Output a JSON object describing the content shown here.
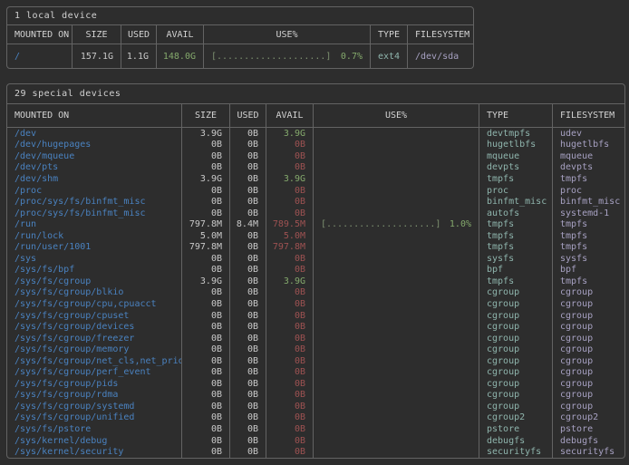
{
  "theme": {
    "bg": "#2d2d2d",
    "border": "#636363",
    "text": "#c9c9c9",
    "title": "#d2d2d2",
    "blue": "#4a82c0",
    "green": "#84a96c",
    "red": "#9e5252",
    "teal": "#8fb5ad",
    "lavender": "#a7a1c2",
    "bardots": "#7d9070"
  },
  "tables": [
    {
      "title": "1 local device",
      "columns": [
        {
          "key": "mounted",
          "label": "MOUNTED ON"
        },
        {
          "key": "size",
          "label": "SIZE"
        },
        {
          "key": "used",
          "label": "USED"
        },
        {
          "key": "avail",
          "label": "AVAIL"
        },
        {
          "key": "use",
          "label": "USE%"
        },
        {
          "key": "type",
          "label": "TYPE"
        },
        {
          "key": "filesystem",
          "label": "FILESYSTEM"
        }
      ],
      "rows": [
        {
          "mounted": "/",
          "size": "157.1G",
          "used": "1.1G",
          "avail": "148.0G",
          "avail_color": "green",
          "bar": "[....................]",
          "pct": "0.7%",
          "type": "ext4",
          "filesystem": "/dev/sda"
        }
      ]
    },
    {
      "title": "29 special devices",
      "columns": [
        {
          "key": "mounted",
          "label": "MOUNTED ON"
        },
        {
          "key": "size",
          "label": "SIZE"
        },
        {
          "key": "used",
          "label": "USED"
        },
        {
          "key": "avail",
          "label": "AVAIL"
        },
        {
          "key": "use",
          "label": "USE%"
        },
        {
          "key": "type",
          "label": "TYPE"
        },
        {
          "key": "filesystem",
          "label": "FILESYSTEM"
        }
      ],
      "rows": [
        {
          "mounted": "/dev",
          "size": "3.9G",
          "used": "0B",
          "avail": "3.9G",
          "avail_color": "green",
          "type": "devtmpfs",
          "filesystem": "udev"
        },
        {
          "mounted": "/dev/hugepages",
          "size": "0B",
          "used": "0B",
          "avail": "0B",
          "avail_color": "red",
          "type": "hugetlbfs",
          "filesystem": "hugetlbfs"
        },
        {
          "mounted": "/dev/mqueue",
          "size": "0B",
          "used": "0B",
          "avail": "0B",
          "avail_color": "red",
          "type": "mqueue",
          "filesystem": "mqueue"
        },
        {
          "mounted": "/dev/pts",
          "size": "0B",
          "used": "0B",
          "avail": "0B",
          "avail_color": "red",
          "type": "devpts",
          "filesystem": "devpts"
        },
        {
          "mounted": "/dev/shm",
          "size": "3.9G",
          "used": "0B",
          "avail": "3.9G",
          "avail_color": "green",
          "type": "tmpfs",
          "filesystem": "tmpfs"
        },
        {
          "mounted": "/proc",
          "size": "0B",
          "used": "0B",
          "avail": "0B",
          "avail_color": "red",
          "type": "proc",
          "filesystem": "proc"
        },
        {
          "mounted": "/proc/sys/fs/binfmt_misc",
          "size": "0B",
          "used": "0B",
          "avail": "0B",
          "avail_color": "red",
          "type": "binfmt_misc",
          "filesystem": "binfmt_misc"
        },
        {
          "mounted": "/proc/sys/fs/binfmt_misc",
          "size": "0B",
          "used": "0B",
          "avail": "0B",
          "avail_color": "red",
          "type": "autofs",
          "filesystem": "systemd-1"
        },
        {
          "mounted": "/run",
          "size": "797.8M",
          "used": "8.4M",
          "avail": "789.5M",
          "avail_color": "red",
          "bar": "[....................]",
          "pct": "1.0%",
          "type": "tmpfs",
          "filesystem": "tmpfs"
        },
        {
          "mounted": "/run/lock",
          "size": "5.0M",
          "used": "0B",
          "avail": "5.0M",
          "avail_color": "red",
          "type": "tmpfs",
          "filesystem": "tmpfs"
        },
        {
          "mounted": "/run/user/1001",
          "size": "797.8M",
          "used": "0B",
          "avail": "797.8M",
          "avail_color": "red",
          "type": "tmpfs",
          "filesystem": "tmpfs"
        },
        {
          "mounted": "/sys",
          "size": "0B",
          "used": "0B",
          "avail": "0B",
          "avail_color": "red",
          "type": "sysfs",
          "filesystem": "sysfs"
        },
        {
          "mounted": "/sys/fs/bpf",
          "size": "0B",
          "used": "0B",
          "avail": "0B",
          "avail_color": "red",
          "type": "bpf",
          "filesystem": "bpf"
        },
        {
          "mounted": "/sys/fs/cgroup",
          "size": "3.9G",
          "used": "0B",
          "avail": "3.9G",
          "avail_color": "green",
          "type": "tmpfs",
          "filesystem": "tmpfs"
        },
        {
          "mounted": "/sys/fs/cgroup/blkio",
          "size": "0B",
          "used": "0B",
          "avail": "0B",
          "avail_color": "red",
          "type": "cgroup",
          "filesystem": "cgroup"
        },
        {
          "mounted": "/sys/fs/cgroup/cpu,cpuacct",
          "size": "0B",
          "used": "0B",
          "avail": "0B",
          "avail_color": "red",
          "type": "cgroup",
          "filesystem": "cgroup"
        },
        {
          "mounted": "/sys/fs/cgroup/cpuset",
          "size": "0B",
          "used": "0B",
          "avail": "0B",
          "avail_color": "red",
          "type": "cgroup",
          "filesystem": "cgroup"
        },
        {
          "mounted": "/sys/fs/cgroup/devices",
          "size": "0B",
          "used": "0B",
          "avail": "0B",
          "avail_color": "red",
          "type": "cgroup",
          "filesystem": "cgroup"
        },
        {
          "mounted": "/sys/fs/cgroup/freezer",
          "size": "0B",
          "used": "0B",
          "avail": "0B",
          "avail_color": "red",
          "type": "cgroup",
          "filesystem": "cgroup"
        },
        {
          "mounted": "/sys/fs/cgroup/memory",
          "size": "0B",
          "used": "0B",
          "avail": "0B",
          "avail_color": "red",
          "type": "cgroup",
          "filesystem": "cgroup"
        },
        {
          "mounted": "/sys/fs/cgroup/net_cls,net_prio",
          "size": "0B",
          "used": "0B",
          "avail": "0B",
          "avail_color": "red",
          "type": "cgroup",
          "filesystem": "cgroup"
        },
        {
          "mounted": "/sys/fs/cgroup/perf_event",
          "size": "0B",
          "used": "0B",
          "avail": "0B",
          "avail_color": "red",
          "type": "cgroup",
          "filesystem": "cgroup"
        },
        {
          "mounted": "/sys/fs/cgroup/pids",
          "size": "0B",
          "used": "0B",
          "avail": "0B",
          "avail_color": "red",
          "type": "cgroup",
          "filesystem": "cgroup"
        },
        {
          "mounted": "/sys/fs/cgroup/rdma",
          "size": "0B",
          "used": "0B",
          "avail": "0B",
          "avail_color": "red",
          "type": "cgroup",
          "filesystem": "cgroup"
        },
        {
          "mounted": "/sys/fs/cgroup/systemd",
          "size": "0B",
          "used": "0B",
          "avail": "0B",
          "avail_color": "red",
          "type": "cgroup",
          "filesystem": "cgroup"
        },
        {
          "mounted": "/sys/fs/cgroup/unified",
          "size": "0B",
          "used": "0B",
          "avail": "0B",
          "avail_color": "red",
          "type": "cgroup2",
          "filesystem": "cgroup2"
        },
        {
          "mounted": "/sys/fs/pstore",
          "size": "0B",
          "used": "0B",
          "avail": "0B",
          "avail_color": "red",
          "type": "pstore",
          "filesystem": "pstore"
        },
        {
          "mounted": "/sys/kernel/debug",
          "size": "0B",
          "used": "0B",
          "avail": "0B",
          "avail_color": "red",
          "type": "debugfs",
          "filesystem": "debugfs"
        },
        {
          "mounted": "/sys/kernel/security",
          "size": "0B",
          "used": "0B",
          "avail": "0B",
          "avail_color": "red",
          "type": "securityfs",
          "filesystem": "securityfs"
        }
      ]
    }
  ]
}
